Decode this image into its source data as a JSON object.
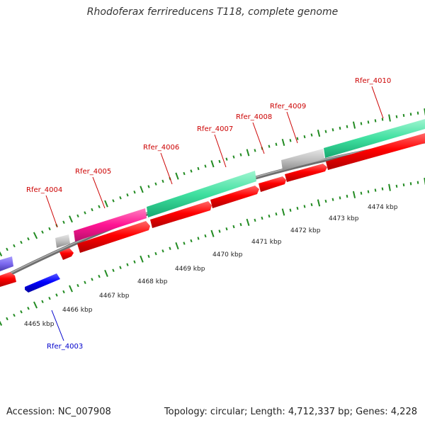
{
  "title": "Rhodoferax ferrireducens T118, complete genome",
  "footer": {
    "accession": "Accession: NC_007908",
    "stats": "Topology: circular; Length: 4,712,337 bp; Genes: 4,228"
  },
  "colors": {
    "cds_forward": "#ff0000",
    "cds_reverse": "#0000ff",
    "label_forward": "#cc0000",
    "label_reverse": "#0000cc",
    "track_gray": "#c0c0c0",
    "track_magenta": "#ff1493",
    "track_green": "#40e0a0",
    "track_purple": "#7b68ee",
    "backbone": "#808080",
    "tick": "#228b22"
  },
  "kbp_labels": [
    "4465 kbp",
    "4466 kbp",
    "4467 kbp",
    "4468 kbp",
    "4469 kbp",
    "4470 kbp",
    "4471 kbp",
    "4472 kbp",
    "4473 kbp",
    "4474 kbp"
  ],
  "gene_labels": [
    {
      "text": "Rfer_4003",
      "strand": "reverse"
    },
    {
      "text": "Rfer_4004",
      "strand": "forward"
    },
    {
      "text": "Rfer_4005",
      "strand": "forward"
    },
    {
      "text": "Rfer_4006",
      "strand": "forward"
    },
    {
      "text": "Rfer_4007",
      "strand": "forward"
    },
    {
      "text": "Rfer_4008",
      "strand": "forward"
    },
    {
      "text": "Rfer_4009",
      "strand": "forward"
    },
    {
      "text": "Rfer_4010",
      "strand": "forward"
    }
  ]
}
